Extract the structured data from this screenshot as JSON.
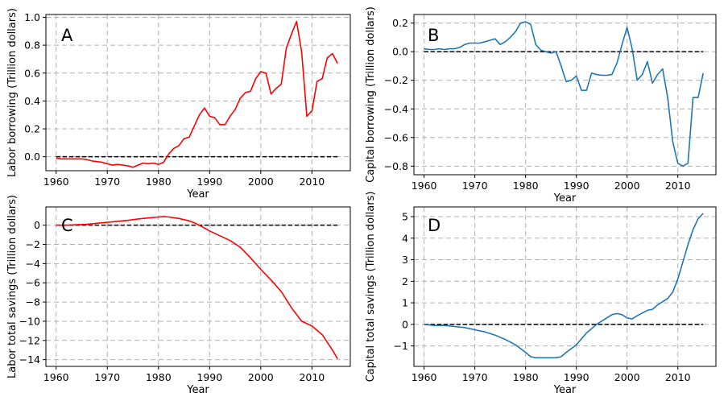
{
  "chart_data": [
    {
      "panel": "A",
      "type": "line",
      "xlabel": "Year",
      "ylabel": "Labor borrowing (Trillion dollars)",
      "xlim": [
        1958,
        2017.5
      ],
      "ylim": [
        -0.1,
        1.02
      ],
      "xticks": [
        1960,
        1970,
        1980,
        1990,
        2000,
        2010
      ],
      "yticks": [
        0.0,
        0.2,
        0.4,
        0.6,
        0.8,
        1.0
      ],
      "ytick_labels": [
        "0.0",
        "0.2",
        "0.4",
        "0.6",
        "0.8",
        "1.0"
      ],
      "grid": true,
      "zero_line": {
        "x": [
          1960,
          2015
        ],
        "y": 0
      },
      "series": [
        {
          "color": "#ff0000",
          "x": [
            1960,
            1961,
            1962,
            1963,
            1964,
            1965,
            1966,
            1967,
            1968,
            1969,
            1970,
            1971,
            1972,
            1973,
            1974,
            1975,
            1976,
            1977,
            1978,
            1979,
            1980,
            1981,
            1982,
            1983,
            1984,
            1985,
            1986,
            1987,
            1988,
            1989,
            1990,
            1991,
            1992,
            1993,
            1994,
            1995,
            1996,
            1997,
            1998,
            1999,
            2000,
            2001,
            2002,
            2003,
            2004,
            2005,
            2006,
            2007,
            2008,
            2009,
            2010,
            2011,
            2012,
            2013,
            2014,
            2015
          ],
          "y": [
            -0.01,
            -0.015,
            -0.015,
            -0.015,
            -0.015,
            -0.015,
            -0.02,
            -0.03,
            -0.035,
            -0.04,
            -0.05,
            -0.06,
            -0.055,
            -0.06,
            -0.065,
            -0.075,
            -0.06,
            -0.045,
            -0.05,
            -0.045,
            -0.055,
            -0.04,
            0.02,
            0.06,
            0.08,
            0.13,
            0.14,
            0.22,
            0.3,
            0.35,
            0.29,
            0.28,
            0.23,
            0.23,
            0.29,
            0.34,
            0.42,
            0.46,
            0.47,
            0.56,
            0.61,
            0.6,
            0.45,
            0.49,
            0.52,
            0.78,
            0.88,
            0.97,
            0.75,
            0.29,
            0.33,
            0.54,
            0.56,
            0.71,
            0.74,
            0.67
          ]
        }
      ]
    },
    {
      "panel": "B",
      "type": "line",
      "xlabel": "Year",
      "ylabel": "Capital borrowing (Trillion dollars)",
      "xlim": [
        1958,
        2017.5
      ],
      "ylim": [
        -0.86,
        0.26
      ],
      "xticks": [
        1960,
        1970,
        1980,
        1990,
        2000,
        2010
      ],
      "yticks": [
        -0.8,
        -0.6,
        -0.4,
        -0.2,
        0.0,
        0.2
      ],
      "ytick_labels": [
        "−0.8",
        "−0.6",
        "−0.4",
        "−0.2",
        "0.0",
        "0.2"
      ],
      "grid": true,
      "zero_line": {
        "x": [
          1960,
          2015
        ],
        "y": 0
      },
      "series": [
        {
          "color": "#1f77b4",
          "x": [
            1960,
            1961,
            1962,
            1963,
            1964,
            1965,
            1966,
            1967,
            1968,
            1969,
            1970,
            1971,
            1972,
            1973,
            1974,
            1975,
            1976,
            1977,
            1978,
            1979,
            1980,
            1981,
            1982,
            1983,
            1984,
            1985,
            1986,
            1987,
            1988,
            1989,
            1990,
            1991,
            1992,
            1993,
            1994,
            1995,
            1996,
            1997,
            1998,
            1999,
            2000,
            2001,
            2002,
            2003,
            2004,
            2005,
            2006,
            2007,
            2008,
            2009,
            2010,
            2011,
            2012,
            2013,
            2014,
            2015
          ],
          "y": [
            0.02,
            0.015,
            0.015,
            0.02,
            0.015,
            0.02,
            0.02,
            0.03,
            0.05,
            0.06,
            0.06,
            0.06,
            0.07,
            0.08,
            0.09,
            0.05,
            0.07,
            0.1,
            0.14,
            0.2,
            0.21,
            0.19,
            0.05,
            0.01,
            0.0,
            -0.01,
            0.0,
            -0.1,
            -0.21,
            -0.2,
            -0.17,
            -0.27,
            -0.27,
            -0.15,
            -0.16,
            -0.165,
            -0.165,
            -0.16,
            -0.08,
            0.05,
            0.17,
            0.02,
            -0.2,
            -0.16,
            -0.07,
            -0.22,
            -0.16,
            -0.12,
            -0.32,
            -0.63,
            -0.78,
            -0.8,
            -0.78,
            -0.32,
            -0.32,
            -0.15
          ]
        }
      ]
    },
    {
      "panel": "C",
      "type": "line",
      "xlabel": "Year",
      "ylabel": "Labor total savings (Trillion dollars)",
      "xlim": [
        1958,
        2017.5
      ],
      "ylim": [
        -14.7,
        1.9
      ],
      "xticks": [
        1960,
        1970,
        1980,
        1990,
        2000,
        2010
      ],
      "yticks": [
        -14,
        -12,
        -10,
        -8,
        -6,
        -4,
        -2,
        0
      ],
      "ytick_labels": [
        "−14",
        "−12",
        "−10",
        "−8",
        "−6",
        "−4",
        "−2",
        "0"
      ],
      "grid": true,
      "zero_line": {
        "x": [
          1960,
          2015
        ],
        "y": 0
      },
      "series": [
        {
          "color": "#ff0000",
          "x": [
            1960,
            1962,
            1964,
            1966,
            1968,
            1970,
            1972,
            1974,
            1976,
            1978,
            1980,
            1981,
            1982,
            1984,
            1986,
            1987,
            1988,
            1990,
            1992,
            1994,
            1996,
            1998,
            2000,
            2002,
            2004,
            2006,
            2008,
            2010,
            2012,
            2014,
            2015
          ],
          "y": [
            0.0,
            0.0,
            0.05,
            0.1,
            0.2,
            0.3,
            0.4,
            0.5,
            0.65,
            0.75,
            0.85,
            0.9,
            0.85,
            0.7,
            0.45,
            0.25,
            0.0,
            -0.6,
            -1.1,
            -1.6,
            -2.3,
            -3.4,
            -4.6,
            -5.7,
            -6.9,
            -8.6,
            -10.0,
            -10.5,
            -11.4,
            -13.0,
            -13.9
          ]
        }
      ]
    },
    {
      "panel": "D",
      "type": "line",
      "xlabel": "Year",
      "ylabel": "Capital total savings (Trillion dollars)",
      "xlim": [
        1958,
        2017.5
      ],
      "ylim": [
        -1.95,
        5.45
      ],
      "xticks": [
        1960,
        1970,
        1980,
        1990,
        2000,
        2010
      ],
      "yticks": [
        -1,
        0,
        1,
        2,
        3,
        4,
        5
      ],
      "ytick_labels": [
        "−1",
        "0",
        "1",
        "2",
        "3",
        "4",
        "5"
      ],
      "grid": true,
      "zero_line": {
        "x": [
          1960,
          2015
        ],
        "y": 0
      },
      "series": [
        {
          "color": "#1f77b4",
          "x": [
            1960,
            1962,
            1964,
            1966,
            1968,
            1970,
            1972,
            1974,
            1976,
            1978,
            1980,
            1981,
            1982,
            1984,
            1986,
            1987,
            1988,
            1990,
            1992,
            1994,
            1996,
            1997,
            1998,
            1999,
            2000,
            2001,
            2002,
            2004,
            2005,
            2006,
            2007,
            2008,
            2009,
            2010,
            2011,
            2012,
            2013,
            2014,
            2015
          ],
          "y": [
            0.0,
            -0.05,
            -0.05,
            -0.1,
            -0.15,
            -0.25,
            -0.35,
            -0.5,
            -0.7,
            -0.95,
            -1.3,
            -1.5,
            -1.55,
            -1.55,
            -1.55,
            -1.5,
            -1.3,
            -0.95,
            -0.4,
            0.0,
            0.3,
            0.45,
            0.5,
            0.45,
            0.3,
            0.25,
            0.4,
            0.65,
            0.7,
            0.9,
            1.05,
            1.2,
            1.5,
            2.1,
            2.9,
            3.7,
            4.4,
            4.9,
            5.15
          ]
        }
      ]
    }
  ]
}
